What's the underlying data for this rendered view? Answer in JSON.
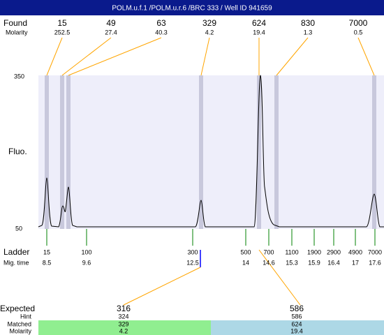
{
  "header": {
    "title": "POLM.u.f.1 /POLM.u.r.6 /BRC 333 / Well ID 941659"
  },
  "found": {
    "label": "Found",
    "molarity_label": "Molarity",
    "peaks": [
      {
        "size": "15",
        "molarity": "252.5"
      },
      {
        "size": "49",
        "molarity": "27.4"
      },
      {
        "size": "63",
        "molarity": "40.3"
      },
      {
        "size": "329",
        "molarity": "4.2"
      },
      {
        "size": "624",
        "molarity": "19.4"
      },
      {
        "size": "830",
        "molarity": "1.3"
      },
      {
        "size": "7000",
        "molarity": "0.5"
      }
    ]
  },
  "axis": {
    "top": "350",
    "bottom": "50",
    "label": "Fluo."
  },
  "ladder": {
    "label": "Ladder",
    "time_label": "Mig. time",
    "items": [
      {
        "size": "15",
        "time": "8.5"
      },
      {
        "size": "100",
        "time": "9.6"
      },
      {
        "size": "300",
        "time": "12.5"
      },
      {
        "size": "500",
        "time": "14"
      },
      {
        "size": "700",
        "time": "14.6"
      },
      {
        "size": "1100",
        "time": "15.3"
      },
      {
        "size": "1900",
        "time": "15.9"
      },
      {
        "size": "2900",
        "time": "16.4"
      },
      {
        "size": "4900",
        "time": "17"
      },
      {
        "size": "7000",
        "time": "17.6"
      }
    ]
  },
  "expected": {
    "label": "Expected",
    "hint_label": "Hint",
    "matched_label": "Matched",
    "molarity_label": "Molarity",
    "items": [
      {
        "expected": "316",
        "hint": "324",
        "matched": "329",
        "molarity": "4.2"
      },
      {
        "expected": "586",
        "hint": "586",
        "matched": "624",
        "molarity": "19.4"
      }
    ]
  }
}
